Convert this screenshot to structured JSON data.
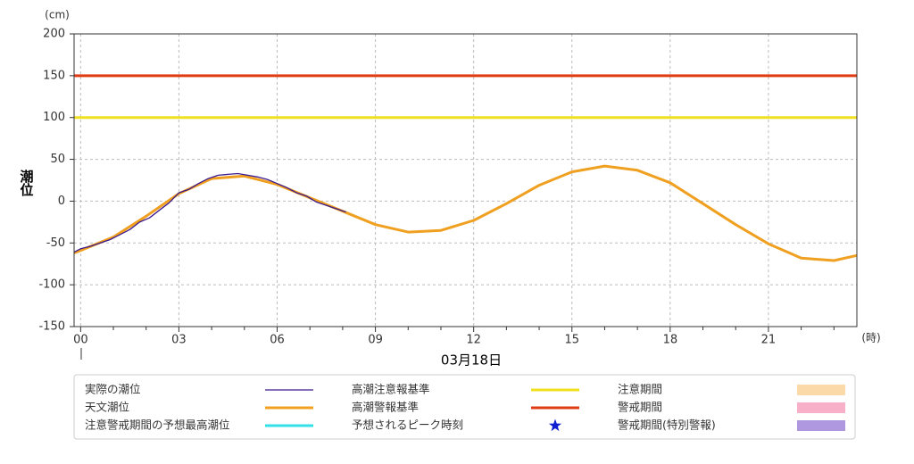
{
  "chart_data": {
    "type": "line",
    "y_title": "潮位",
    "y_unit": "(cm)",
    "x_unit": "(時)",
    "date_label": "03月18日",
    "xlim": [
      -0.2,
      23.7
    ],
    "ylim": [
      -150,
      200
    ],
    "xticks": [
      {
        "value": 0,
        "label": "00"
      },
      {
        "value": 3,
        "label": "03"
      },
      {
        "value": 6,
        "label": "06"
      },
      {
        "value": 9,
        "label": "09"
      },
      {
        "value": 12,
        "label": "12"
      },
      {
        "value": 15,
        "label": "15"
      },
      {
        "value": 18,
        "label": "18"
      },
      {
        "value": 21,
        "label": "21"
      }
    ],
    "xticks_minor": [
      1,
      2,
      4,
      5,
      7,
      8,
      10,
      11,
      13,
      14,
      16,
      17,
      19,
      20,
      22,
      23
    ],
    "yticks": [
      -150,
      -100,
      -50,
      0,
      50,
      100,
      150,
      200
    ],
    "grid": true,
    "series": [
      {
        "name": "実際の潮位",
        "color": "#3b1a8f",
        "x": [
          -0.2,
          0,
          0.3,
          0.6,
          0.9,
          1.2,
          1.5,
          1.8,
          2.1,
          2.4,
          2.7,
          3,
          3.3,
          3.6,
          3.9,
          4.2,
          4.5,
          4.8,
          5.1,
          5.4,
          5.7,
          6,
          6.3,
          6.6,
          6.9,
          7.2,
          7.5,
          7.8,
          8.1
        ],
        "values": [
          -61,
          -57,
          -54,
          -50,
          -46,
          -40,
          -34,
          -25,
          -20,
          -11,
          -2,
          10,
          14,
          21,
          27,
          31,
          32,
          33,
          31,
          29,
          26,
          21,
          16,
          10,
          6,
          -1,
          -5,
          -9,
          -13
        ]
      },
      {
        "name": "天文潮位",
        "color": "#f0a020",
        "x": [
          -0.2,
          0,
          1,
          2,
          3,
          4,
          5,
          6,
          7,
          8,
          9,
          10,
          11,
          12,
          13,
          14,
          15,
          16,
          17,
          18,
          19,
          20,
          21,
          22,
          23,
          23.7
        ],
        "values": [
          -62,
          -59,
          -43,
          -18,
          9,
          27,
          30,
          20,
          4,
          -12,
          -28,
          -37,
          -35,
          -23,
          -3,
          19,
          35,
          42,
          37,
          22,
          -3,
          -28,
          -51,
          -68,
          -71,
          -65
        ]
      }
    ],
    "reference_lines": [
      {
        "name": "高潮注意報基準",
        "value": 100,
        "color": "#f0e020"
      },
      {
        "name": "高潮警報基準",
        "value": 150,
        "color": "#e03c14"
      }
    ],
    "legend_only": [
      {
        "name": "注意警戒期間の予想最高潮位",
        "color": "#33e0e8",
        "marker": "line"
      },
      {
        "name": "予想されるピーク時刻",
        "color": "#1020d0",
        "marker": "star"
      },
      {
        "name": "注意期間",
        "color": "#fcd9a8",
        "marker": "box"
      },
      {
        "name": "警戒期間",
        "color": "#f8b0c8",
        "marker": "box"
      },
      {
        "name": "警戒期間(特別警報)",
        "color": "#b098e0",
        "marker": "box"
      }
    ]
  }
}
